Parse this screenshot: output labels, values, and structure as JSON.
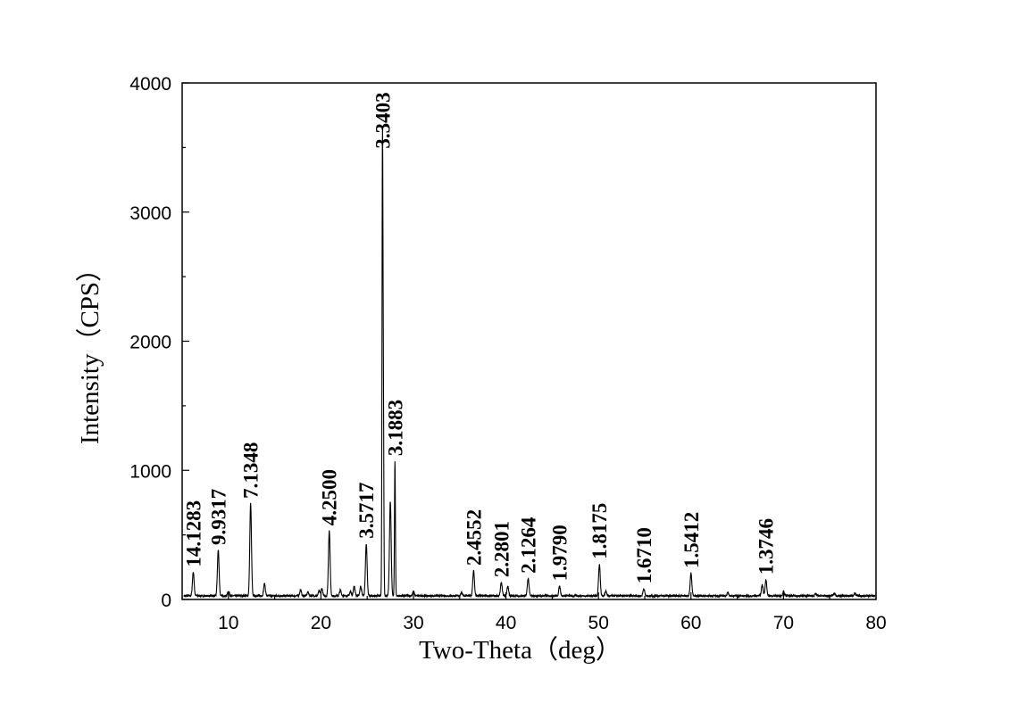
{
  "chart_data": {
    "type": "line",
    "title": "",
    "xlabel": "Two-Theta（deg）",
    "ylabel": "Intensity（CPS）",
    "xlim": [
      5,
      80
    ],
    "ylim": [
      0,
      4000
    ],
    "xticks": [
      10,
      20,
      30,
      40,
      50,
      60,
      70,
      80
    ],
    "yticks": [
      0,
      1000,
      2000,
      3000,
      4000
    ],
    "grid": false,
    "legend": "none",
    "line_color": "#000000",
    "series": [
      {
        "baseline": 25,
        "peaks": [
          {
            "x": 6.2,
            "y": 210
          },
          {
            "x": 8.9,
            "y": 380
          },
          {
            "x": 10.0,
            "y": 60
          },
          {
            "x": 12.4,
            "y": 740
          },
          {
            "x": 13.9,
            "y": 120
          },
          {
            "x": 17.8,
            "y": 70
          },
          {
            "x": 18.6,
            "y": 55
          },
          {
            "x": 19.8,
            "y": 60
          },
          {
            "x": 20.1,
            "y": 80
          },
          {
            "x": 20.9,
            "y": 530
          },
          {
            "x": 22.1,
            "y": 70
          },
          {
            "x": 23.2,
            "y": 60
          },
          {
            "x": 23.6,
            "y": 100
          },
          {
            "x": 24.3,
            "y": 100
          },
          {
            "x": 24.9,
            "y": 430
          },
          {
            "x": 26.65,
            "y": 3450
          },
          {
            "x": 26.75,
            "y": 1430
          },
          {
            "x": 27.5,
            "y": 760
          },
          {
            "x": 28.0,
            "y": 1070
          },
          {
            "x": 30.0,
            "y": 60
          },
          {
            "x": 35.2,
            "y": 50
          },
          {
            "x": 36.5,
            "y": 220
          },
          {
            "x": 39.5,
            "y": 130
          },
          {
            "x": 40.2,
            "y": 100
          },
          {
            "x": 42.4,
            "y": 160
          },
          {
            "x": 45.8,
            "y": 100
          },
          {
            "x": 50.1,
            "y": 270
          },
          {
            "x": 50.8,
            "y": 60
          },
          {
            "x": 54.9,
            "y": 80
          },
          {
            "x": 60.0,
            "y": 200
          },
          {
            "x": 64.0,
            "y": 50
          },
          {
            "x": 67.7,
            "y": 110
          },
          {
            "x": 68.1,
            "y": 150
          },
          {
            "x": 70.0,
            "y": 60
          },
          {
            "x": 73.5,
            "y": 40
          },
          {
            "x": 75.5,
            "y": 45
          },
          {
            "x": 77.7,
            "y": 45
          }
        ]
      }
    ],
    "annotations": [
      {
        "text": "14.1283",
        "x": 6.2,
        "y": 210
      },
      {
        "text": "9.9317",
        "x": 8.9,
        "y": 380
      },
      {
        "text": "7.1348",
        "x": 12.4,
        "y": 740
      },
      {
        "text": "4.2500",
        "x": 20.9,
        "y": 530
      },
      {
        "text": "3.5717",
        "x": 24.9,
        "y": 430
      },
      {
        "text": "3.3403",
        "x": 26.65,
        "y": 3450
      },
      {
        "text": "3.1883",
        "x": 28.0,
        "y": 1070
      },
      {
        "text": "2.4552",
        "x": 36.5,
        "y": 220
      },
      {
        "text": "2.2801",
        "x": 39.5,
        "y": 130
      },
      {
        "text": "2.1264",
        "x": 42.4,
        "y": 160
      },
      {
        "text": "1.9790",
        "x": 45.8,
        "y": 100
      },
      {
        "text": "1.8175",
        "x": 50.1,
        "y": 270
      },
      {
        "text": "1.6710",
        "x": 54.9,
        "y": 80
      },
      {
        "text": "1.5412",
        "x": 60.0,
        "y": 200
      },
      {
        "text": "1.3746",
        "x": 68.1,
        "y": 150
      }
    ]
  }
}
